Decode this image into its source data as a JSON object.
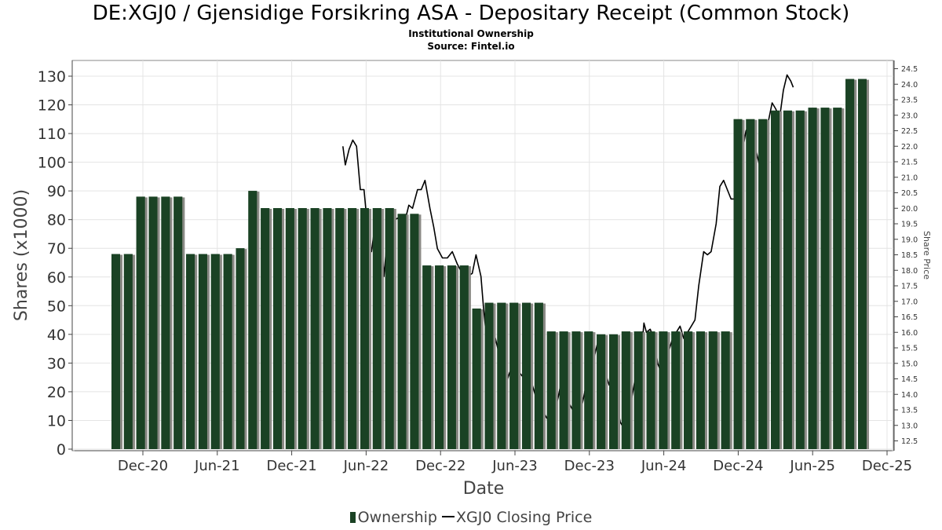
{
  "chart_data": {
    "type": "bar",
    "title": "DE:XGJ0 / Gjensidige Forsikring ASA - Depositary Receipt (Common Stock)",
    "subtitle_lines": [
      "Institutional Ownership",
      "Source: Fintel.io"
    ],
    "xlabel": "Date",
    "ylabel": "Shares (x1000)",
    "y2label": "Share Price",
    "x_ticks": [
      "Dec-20",
      "Jun-21",
      "Dec-21",
      "Jun-22",
      "Dec-22",
      "Jun-23",
      "Dec-23",
      "Jun-24",
      "Dec-24",
      "Jun-25",
      "Dec-25"
    ],
    "ylim": [
      0,
      130
    ],
    "y_ticks": [
      0,
      10,
      20,
      30,
      40,
      50,
      60,
      70,
      80,
      90,
      100,
      110,
      120,
      130
    ],
    "y2lim": [
      12.25,
      24.7
    ],
    "y2_ticks": [
      "12.5",
      "13.0",
      "13.5",
      "14.0",
      "14.5",
      "15.0",
      "15.5",
      "16.0",
      "16.5",
      "17.0",
      "17.5",
      "18.0",
      "18.5",
      "19.0",
      "19.5",
      "20.0",
      "20.5",
      "21.0",
      "21.5",
      "22.0",
      "22.5",
      "23.0",
      "23.5",
      "24.0",
      "24.5"
    ],
    "grid": true,
    "legend_position": "bottom",
    "series": [
      {
        "name": "Ownership",
        "color": "#1a4224",
        "values": [
          68,
          68,
          88,
          88,
          88,
          88,
          68,
          68,
          68,
          68,
          70,
          90,
          84,
          84,
          84,
          84,
          84,
          84,
          84,
          84,
          84,
          84,
          84,
          82,
          82,
          64,
          64,
          64,
          64,
          49,
          51,
          51,
          51,
          51,
          51,
          41,
          41,
          41,
          41,
          40,
          40,
          41,
          41,
          41,
          41,
          41,
          41,
          41,
          41,
          41,
          115,
          115,
          115,
          118,
          118,
          118,
          119,
          119,
          119,
          129,
          129
        ]
      },
      {
        "name": "XGJ0 Closing Price",
        "color": "#000000",
        "points": [
          [
            0,
            22.0
          ],
          [
            0.2,
            21.4
          ],
          [
            0.5,
            21.9
          ],
          [
            0.8,
            22.2
          ],
          [
            1.1,
            22.0
          ],
          [
            1.4,
            20.6
          ],
          [
            1.7,
            20.6
          ],
          [
            2.0,
            19.3
          ],
          [
            2.3,
            18.6
          ],
          [
            2.6,
            19.5
          ],
          [
            3.0,
            19.7
          ],
          [
            3.3,
            17.8
          ],
          [
            3.6,
            19.2
          ],
          [
            4.0,
            19.6
          ],
          [
            4.5,
            19.7
          ],
          [
            5.0,
            19.6
          ],
          [
            5.3,
            20.1
          ],
          [
            5.6,
            20.0
          ],
          [
            6.0,
            20.6
          ],
          [
            6.3,
            20.6
          ],
          [
            6.6,
            20.9
          ],
          [
            7.0,
            20.0
          ],
          [
            7.3,
            19.4
          ],
          [
            7.6,
            18.7
          ],
          [
            8.0,
            18.4
          ],
          [
            8.4,
            18.4
          ],
          [
            8.8,
            18.6
          ],
          [
            9.2,
            18.2
          ],
          [
            9.6,
            17.9
          ],
          [
            10.0,
            17.8
          ],
          [
            10.4,
            17.9
          ],
          [
            10.7,
            18.5
          ],
          [
            11.1,
            17.8
          ],
          [
            11.3,
            16.8
          ],
          [
            11.6,
            15.6
          ],
          [
            11.9,
            15.8
          ],
          [
            12.2,
            15.9
          ],
          [
            12.5,
            15.4
          ],
          [
            12.8,
            14.6
          ],
          [
            13.0,
            14.2
          ],
          [
            13.4,
            14.7
          ],
          [
            13.8,
            15.0
          ],
          [
            14.2,
            14.7
          ],
          [
            14.6,
            14.5
          ],
          [
            15.0,
            14.6
          ],
          [
            15.3,
            14.2
          ],
          [
            15.6,
            13.8
          ],
          [
            15.9,
            13.6
          ],
          [
            16.3,
            13.3
          ],
          [
            16.6,
            13.1
          ],
          [
            17.0,
            13.4
          ],
          [
            17.3,
            13.9
          ],
          [
            17.6,
            14.5
          ],
          [
            17.9,
            14.0
          ],
          [
            18.2,
            13.7
          ],
          [
            18.6,
            13.4
          ],
          [
            19.0,
            13.3
          ],
          [
            19.3,
            13.8
          ],
          [
            19.6,
            14.4
          ],
          [
            19.9,
            14.9
          ],
          [
            20.2,
            15.2
          ],
          [
            20.5,
            15.7
          ],
          [
            20.8,
            15.3
          ],
          [
            21.1,
            14.7
          ],
          [
            21.4,
            14.3
          ],
          [
            21.7,
            14.2
          ],
          [
            22.0,
            13.7
          ],
          [
            22.3,
            13.1
          ],
          [
            22.6,
            12.9
          ],
          [
            22.9,
            13.3
          ],
          [
            23.1,
            13.6
          ],
          [
            23.4,
            14.3
          ],
          [
            23.7,
            15.0
          ],
          [
            24.0,
            15.4
          ],
          [
            24.2,
            16.3
          ],
          [
            24.4,
            16.0
          ],
          [
            24.7,
            16.1
          ],
          [
            25.0,
            15.8
          ],
          [
            25.3,
            15.0
          ],
          [
            25.6,
            14.7
          ],
          [
            25.9,
            15.2
          ],
          [
            26.2,
            15.4
          ],
          [
            26.5,
            15.8
          ],
          [
            26.8,
            16.0
          ],
          [
            27.1,
            16.2
          ],
          [
            27.4,
            15.8
          ],
          [
            27.7,
            16.0
          ],
          [
            28.0,
            16.2
          ],
          [
            28.3,
            16.4
          ],
          [
            28.6,
            17.5
          ],
          [
            29.0,
            18.6
          ],
          [
            29.3,
            18.5
          ],
          [
            29.6,
            18.6
          ],
          [
            30.0,
            19.5
          ],
          [
            30.3,
            20.7
          ],
          [
            30.6,
            20.9
          ],
          [
            30.9,
            20.6
          ],
          [
            31.2,
            20.3
          ],
          [
            31.5,
            20.3
          ],
          [
            31.8,
            20.8
          ],
          [
            32.1,
            21.8
          ],
          [
            32.4,
            22.5
          ],
          [
            32.7,
            22.7
          ],
          [
            33.0,
            22.2
          ],
          [
            33.3,
            21.7
          ],
          [
            33.6,
            21.2
          ],
          [
            33.9,
            22.0
          ],
          [
            34.2,
            22.8
          ],
          [
            34.5,
            23.4
          ],
          [
            34.8,
            23.2
          ],
          [
            35.1,
            22.9
          ],
          [
            35.4,
            23.8
          ],
          [
            35.7,
            24.3
          ],
          [
            36.0,
            24.1
          ],
          [
            36.2,
            23.9
          ]
        ]
      }
    ]
  }
}
